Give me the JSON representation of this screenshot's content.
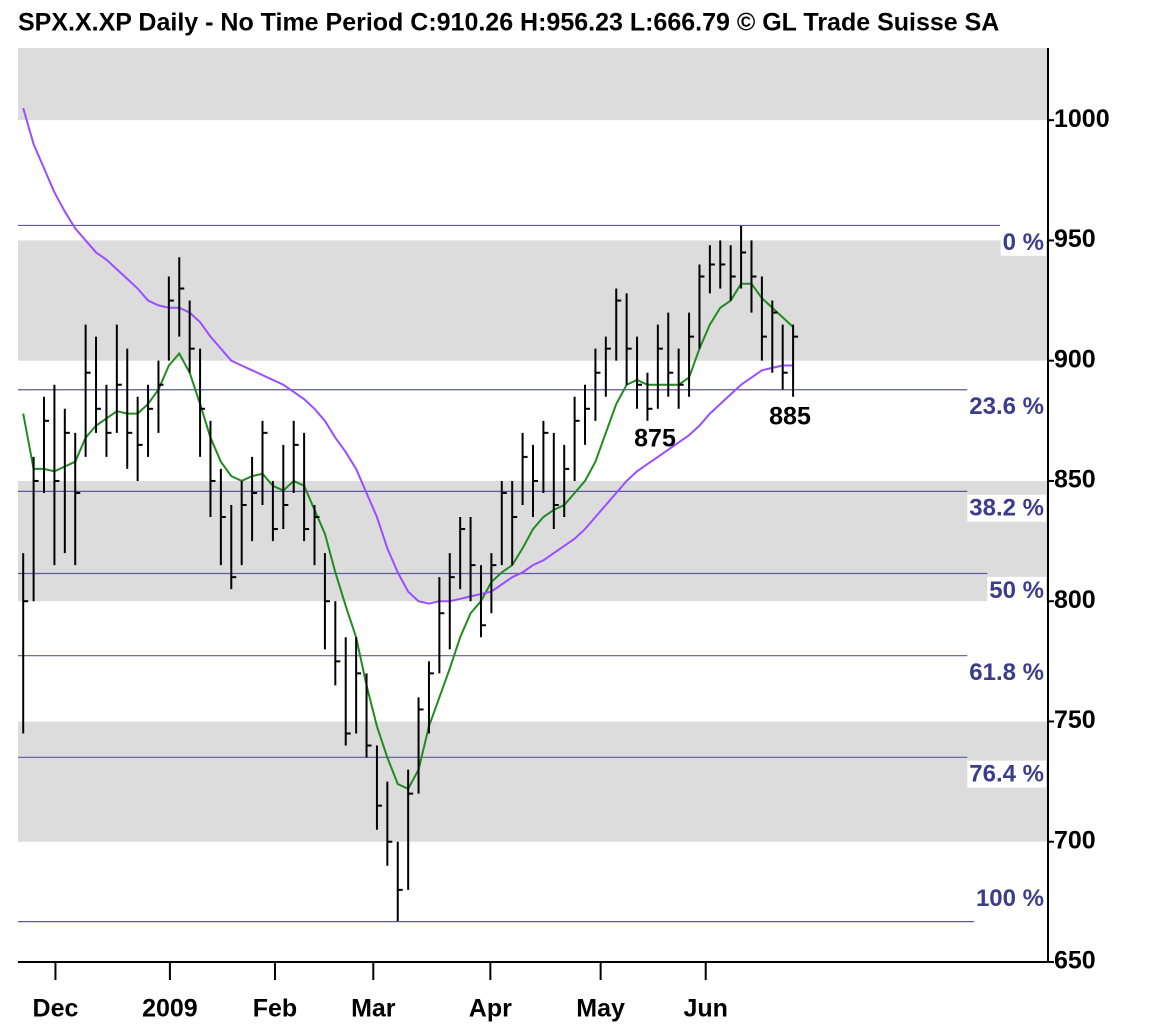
{
  "chart_data": {
    "type": "ohlc",
    "title": "SPX.X.XP Daily - No Time Period   C:910.26 H:956.23 L:666.79 © GL Trade Suisse SA",
    "ylim": [
      650,
      1030
    ],
    "yticks": [
      650,
      700,
      750,
      800,
      850,
      900,
      950,
      1000
    ],
    "xlim": [
      -0.5,
      98.5
    ],
    "xticks": [
      {
        "value": 3.1,
        "label": "Dec"
      },
      {
        "value": 14.1,
        "label": "2009"
      },
      {
        "value": 24.2,
        "label": "Feb"
      },
      {
        "value": 33.65,
        "label": "Mar"
      },
      {
        "value": 44.9,
        "label": "Apr"
      },
      {
        "value": 55.5,
        "label": "May"
      },
      {
        "value": 65.6,
        "label": "Jun"
      }
    ],
    "bands": true,
    "bar_color": "#000000",
    "high": [
      820,
      860,
      885,
      890,
      880,
      870,
      915,
      910,
      890,
      915,
      905,
      885,
      890,
      900,
      935,
      943,
      925,
      905,
      875,
      855,
      840,
      850,
      860,
      875,
      850,
      865,
      875,
      870,
      840,
      820,
      800,
      785,
      785,
      770,
      740,
      725,
      700,
      730,
      760,
      775,
      810,
      820,
      835,
      835,
      815,
      820,
      850,
      850,
      870,
      865,
      875,
      870,
      865,
      885,
      890,
      905,
      910,
      930,
      928,
      910,
      895,
      915,
      920,
      905,
      920,
      940,
      948,
      950,
      948,
      956,
      950,
      935,
      925,
      915,
      915
    ],
    "low": [
      745,
      800,
      845,
      815,
      820,
      815,
      860,
      870,
      860,
      870,
      855,
      850,
      860,
      870,
      900,
      910,
      895,
      860,
      835,
      815,
      805,
      815,
      825,
      840,
      825,
      830,
      845,
      825,
      815,
      780,
      765,
      740,
      745,
      735,
      705,
      690,
      667,
      680,
      720,
      745,
      770,
      780,
      805,
      800,
      785,
      795,
      815,
      815,
      840,
      835,
      845,
      830,
      835,
      850,
      865,
      875,
      885,
      900,
      890,
      880,
      875,
      880,
      885,
      880,
      885,
      905,
      928,
      930,
      925,
      930,
      920,
      900,
      895,
      888,
      885
    ],
    "close": [
      800,
      850,
      875,
      850,
      870,
      845,
      895,
      880,
      870,
      890,
      870,
      865,
      880,
      890,
      925,
      930,
      905,
      880,
      850,
      835,
      810,
      840,
      845,
      870,
      830,
      840,
      865,
      830,
      835,
      800,
      775,
      745,
      770,
      740,
      715,
      700,
      680,
      720,
      755,
      770,
      795,
      810,
      830,
      815,
      790,
      815,
      845,
      835,
      860,
      850,
      870,
      840,
      855,
      875,
      880,
      895,
      905,
      925,
      905,
      890,
      880,
      905,
      895,
      890,
      910,
      935,
      940,
      940,
      935,
      945,
      935,
      910,
      920,
      895,
      910
    ],
    "series": [
      {
        "color": "#1e8c1e",
        "values": [
          878,
          855,
          855,
          854,
          856,
          858,
          868,
          873,
          876,
          879,
          878,
          878,
          882,
          888,
          898,
          903,
          895,
          882,
          868,
          858,
          852,
          850,
          852,
          853,
          848,
          846,
          850,
          848,
          838,
          828,
          812,
          798,
          785,
          765,
          748,
          735,
          724,
          722,
          730,
          748,
          760,
          772,
          785,
          795,
          800,
          808,
          812,
          815,
          822,
          830,
          835,
          838,
          840,
          845,
          850,
          858,
          870,
          882,
          890,
          892,
          890,
          890,
          890,
          890,
          893,
          905,
          915,
          922,
          925,
          932,
          932,
          926,
          922,
          918,
          914
        ]
      },
      {
        "color": "#9b4dff",
        "values": [
          1005,
          990,
          980,
          970,
          962,
          955,
          950,
          945,
          942,
          938,
          934,
          930,
          925,
          923,
          922,
          922,
          920,
          916,
          910,
          905,
          900,
          898,
          896,
          894,
          892,
          890,
          887,
          884,
          880,
          875,
          868,
          862,
          855,
          845,
          835,
          822,
          812,
          804,
          800,
          799,
          800,
          800,
          801,
          802,
          803,
          804,
          807,
          810,
          812,
          815,
          817,
          820,
          823,
          826,
          830,
          835,
          840,
          845,
          850,
          854,
          857,
          860,
          863,
          866,
          869,
          873,
          878,
          882,
          886,
          890,
          893,
          896,
          897,
          898,
          898
        ]
      }
    ],
    "fib_color": "#5a5a9e",
    "fib_levels": [
      {
        "value": 956.23,
        "label": "0 %"
      },
      {
        "value": 887.92,
        "label": "23.6 %"
      },
      {
        "value": 845.66,
        "label": "38.2 %"
      },
      {
        "value": 811.51,
        "label": "50 %"
      },
      {
        "value": 777.36,
        "label": "61.8 %"
      },
      {
        "value": 735.1,
        "label": "76.4 %"
      },
      {
        "value": 666.79,
        "label": "100 %"
      }
    ],
    "annotations": [
      {
        "text": "875"
      },
      {
        "text": "885"
      }
    ]
  }
}
